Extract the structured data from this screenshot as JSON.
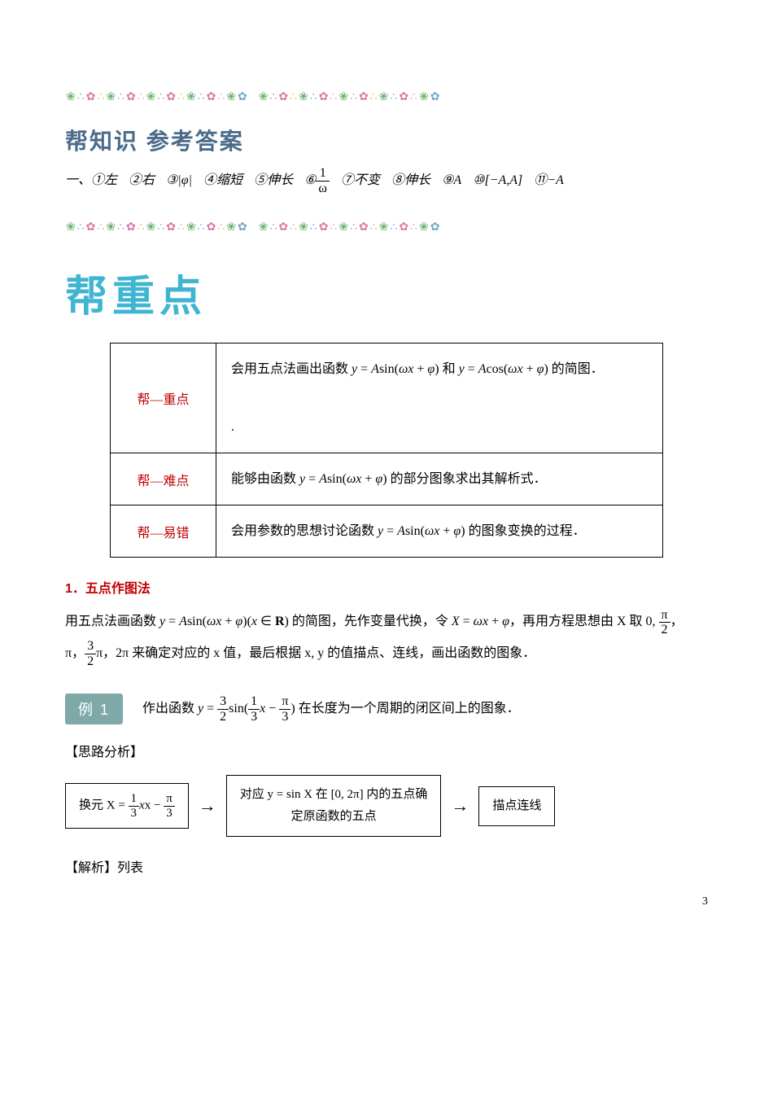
{
  "decor": {
    "colors": [
      "#6fb36f",
      "#6fa8c9",
      "#d97a9e",
      "#d8b25a",
      "#6fb36f",
      "#6fa8c9",
      "#d97a9e",
      "#d8b25a",
      "#6fb36f",
      "#6fa8c9",
      "#d97a9e",
      "#d8b25a",
      "#6fb36f",
      "#6fa8c9",
      "#d97a9e",
      "#d8b25a",
      "#6fb36f",
      "#6fa8c9"
    ]
  },
  "heading1": {
    "text": "帮知识 参考答案",
    "color": "#4a6b8a",
    "fontsize": 28
  },
  "answers": {
    "prefix": "一、",
    "items": [
      {
        "n": "①",
        "v": "左"
      },
      {
        "n": "②",
        "v": "右"
      },
      {
        "n": "③",
        "v": "|φ|"
      },
      {
        "n": "④",
        "v": "缩短"
      },
      {
        "n": "⑤",
        "v": "伸长"
      },
      {
        "n": "⑥",
        "frac": {
          "num": "1",
          "den": "ω"
        }
      },
      {
        "n": "⑦",
        "v": "不变"
      },
      {
        "n": "⑧",
        "v": "伸长"
      },
      {
        "n": "⑨",
        "v": "A"
      },
      {
        "n": "⑩",
        "v": "[−A,A]"
      },
      {
        "n": "⑪",
        "v": "−A"
      }
    ]
  },
  "big_title": {
    "text": "帮重点",
    "color": "#3fb5d1",
    "fontsize": 52
  },
  "key_table": {
    "label_color": "#c00000",
    "border_color": "#000000",
    "rows": [
      {
        "label": "帮—重点",
        "content": "会用五点法画出函数 y = A sin(ωx + φ) 和 y = A cos(ωx + φ) 的简图．",
        "extra": "."
      },
      {
        "label": "帮—难点",
        "content": "能够由函数 y = A sin(ωx + φ) 的部分图象求出其解析式．"
      },
      {
        "label": "帮—易错",
        "content": "会用参数的思想讨论函数 y = A sin(ωx + φ) 的图象变换的过程．"
      }
    ]
  },
  "section1": {
    "num": "1．",
    "title": "五点作图法",
    "color": "#c00000"
  },
  "para1": {
    "pre": "用五点法画函数 ",
    "eq1": "y = A sin(ωx + φ)(x ∈ R)",
    "mid1": " 的简图，先作变量代换，令 ",
    "eq2": "X = ωx + φ",
    "mid2": "，再用方程思想由 X 取 0, ",
    "frac1": {
      "num": "π",
      "den": "2"
    },
    "punc1": "，",
    "line2_pre": "π，",
    "frac2": {
      "num": "3",
      "den": "2"
    },
    "line2_mid": "π，2π 来确定对应的 x 值，最后根据 x, y 的值描点、连线，画出函数的图象．"
  },
  "example": {
    "badge": "例 1",
    "badge_bg": "#7fa9a9",
    "text_pre": "作出函数 ",
    "frac_a": {
      "num": "3",
      "den": "2"
    },
    "frac_b": {
      "num": "1",
      "den": "3"
    },
    "frac_c": {
      "num": "π",
      "den": "3"
    },
    "text_post": " 在长度为一个周期的闭区间上的图象．"
  },
  "analysis": {
    "label": "【思路分析】"
  },
  "flowchart": {
    "box1_pre": "换元 X = ",
    "box1_f1": {
      "num": "1",
      "den": "3"
    },
    "box1_mid": "x − ",
    "box1_f2": {
      "num": "π",
      "den": "3"
    },
    "arrow": "→",
    "box2_line1": "对应 y = sin X 在 [0, 2π] 内的五点确",
    "box2_line2": "定原函数的五点",
    "box3": "描点连线"
  },
  "solution": {
    "label": "【解析】列表"
  },
  "page_number": "3"
}
